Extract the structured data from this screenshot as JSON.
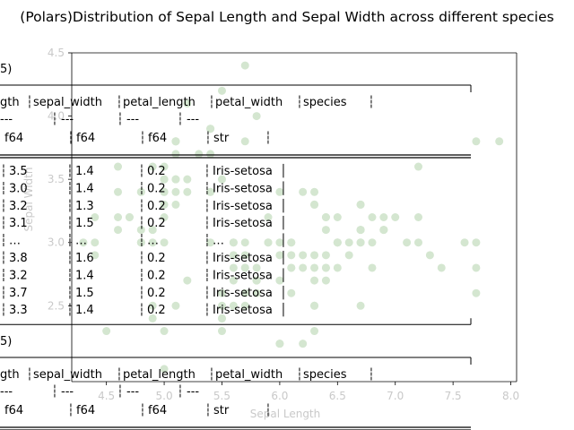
{
  "chart_data": {
    "type": "scatter",
    "title": "(Polars)Distribution of Sepal Length and Sepal Width across different species",
    "xlabel": "Sepal Length",
    "ylabel": "Sepal Width",
    "xlim": [
      4.2,
      8.05
    ],
    "ylim": [
      1.9,
      4.5
    ],
    "xticks": [
      "4.5",
      "5.0",
      "5.5",
      "6.0",
      "6.5",
      "7.0",
      "7.5",
      "8.0"
    ],
    "yticks": [
      "2.5",
      "3.0",
      "3.5",
      "4.0",
      "4.5"
    ],
    "grid": false,
    "point_color": "#d4e6d0",
    "series": [
      {
        "x": [
          5.1,
          4.9,
          4.7,
          4.6,
          5.0,
          5.4,
          4.6,
          5.0,
          4.4,
          4.9,
          5.4,
          4.8,
          4.8,
          4.3,
          5.8,
          5.7,
          5.4,
          5.1,
          5.7,
          5.1,
          5.4,
          5.1,
          4.6,
          5.1,
          4.8,
          5.0,
          5.0,
          5.2,
          5.2,
          4.7,
          4.8,
          5.4,
          5.2,
          5.5,
          4.9,
          5.0,
          5.5,
          4.9,
          4.4,
          5.1,
          5.0,
          4.5,
          4.4,
          5.0,
          5.1,
          4.8,
          5.1,
          4.6,
          5.3,
          5.0,
          7.0,
          6.4,
          6.9,
          5.5,
          6.5,
          5.7,
          6.3,
          4.9,
          6.6,
          5.2,
          5.0,
          5.9,
          6.0,
          6.1,
          5.6,
          6.7,
          5.6,
          5.8,
          6.2,
          5.6,
          5.9,
          6.1,
          6.3,
          6.1,
          6.4,
          6.6,
          6.8,
          6.7,
          6.0,
          5.7,
          5.5,
          5.5,
          5.8,
          6.0,
          5.4,
          6.0,
          6.7,
          6.3,
          5.6,
          5.5,
          5.5,
          6.1,
          5.8,
          5.0,
          5.6,
          5.7,
          5.7,
          6.2,
          5.1,
          5.7,
          6.3,
          5.8,
          7.1,
          6.3,
          6.5,
          7.6,
          4.9,
          7.3,
          6.7,
          7.2,
          6.5,
          6.4,
          6.8,
          5.7,
          5.8,
          6.4,
          6.5,
          7.7,
          7.7,
          6.0,
          6.9,
          5.6,
          7.7,
          6.3,
          6.7,
          7.2,
          6.2,
          6.1,
          6.4,
          7.2,
          7.4,
          7.9,
          6.4,
          6.3,
          6.1,
          7.7,
          6.3,
          6.4,
          6.0,
          6.9,
          6.7,
          6.9,
          5.8,
          6.8,
          6.7,
          6.7,
          6.3,
          6.5,
          6.2,
          5.9
        ],
        "y": [
          3.5,
          3.0,
          3.2,
          3.1,
          3.6,
          3.9,
          3.4,
          3.4,
          2.9,
          3.1,
          3.7,
          3.4,
          3.0,
          3.0,
          4.0,
          4.4,
          3.9,
          3.5,
          3.8,
          3.8,
          3.4,
          3.7,
          3.6,
          3.3,
          3.4,
          3.0,
          3.4,
          3.5,
          3.4,
          3.2,
          3.1,
          3.4,
          4.1,
          4.2,
          3.1,
          3.2,
          3.5,
          3.6,
          3.0,
          3.4,
          3.5,
          2.3,
          3.2,
          3.5,
          3.8,
          3.0,
          3.8,
          3.2,
          3.7,
          3.3,
          3.2,
          3.2,
          3.1,
          2.3,
          2.8,
          2.8,
          3.3,
          2.4,
          2.9,
          2.7,
          2.0,
          3.0,
          2.2,
          2.9,
          2.9,
          3.1,
          3.0,
          2.7,
          2.2,
          2.5,
          3.2,
          2.8,
          2.5,
          2.8,
          2.9,
          3.0,
          2.8,
          3.0,
          2.9,
          2.6,
          2.4,
          2.4,
          2.7,
          2.7,
          3.0,
          3.4,
          3.1,
          2.3,
          3.0,
          2.5,
          2.6,
          3.0,
          2.6,
          2.3,
          2.7,
          3.0,
          2.9,
          2.9,
          2.5,
          2.8,
          3.3,
          2.7,
          3.0,
          2.9,
          3.0,
          3.0,
          2.5,
          2.9,
          2.5,
          3.6,
          3.2,
          2.7,
          3.0,
          2.5,
          2.8,
          3.2,
          3.0,
          3.8,
          2.6,
          2.2,
          3.2,
          2.8,
          2.8,
          2.7,
          3.3,
          3.2,
          2.8,
          3.0,
          2.8,
          3.0,
          2.8,
          3.8,
          2.8,
          2.8,
          2.6,
          3.0,
          3.4,
          3.1,
          3.0,
          3.1,
          3.1,
          3.1,
          2.7,
          3.2,
          3.3,
          3.0,
          2.5,
          3.0,
          3.4,
          3.0
        ]
      }
    ],
    "overlay_tables": [
      {
        "shape_label": "5)",
        "headers": [
          "gth",
          "sepal_width",
          "petal_length",
          "petal_width",
          "species"
        ],
        "sep_row": [
          "---",
          "---",
          "---",
          "---"
        ],
        "dtypes": [
          "f64",
          "f64",
          "f64",
          "str"
        ],
        "rows": [
          [
            "3.5",
            "1.4",
            "0.2",
            "Iris-setosa"
          ],
          [
            "3.0",
            "1.4",
            "0.2",
            "Iris-setosa"
          ],
          [
            "3.2",
            "1.3",
            "0.2",
            "Iris-setosa"
          ],
          [
            "3.1",
            "1.5",
            "0.2",
            "Iris-setosa"
          ],
          [
            "…",
            "…",
            "…",
            "…"
          ],
          [
            "3.8",
            "1.6",
            "0.2",
            "Iris-setosa"
          ],
          [
            "3.2",
            "1.4",
            "0.2",
            "Iris-setosa"
          ],
          [
            "3.7",
            "1.5",
            "0.2",
            "Iris-setosa"
          ],
          [
            "3.3",
            "1.4",
            "0.2",
            "Iris-setosa"
          ]
        ]
      },
      {
        "shape_label": "5)",
        "headers": [
          "gth",
          "sepal_width",
          "petal_length",
          "petal_width",
          "species"
        ],
        "sep_row": [
          "---",
          "---",
          "---",
          "---"
        ],
        "dtypes": [
          "f64",
          "f64",
          "f64",
          "str"
        ],
        "rows": []
      }
    ]
  }
}
